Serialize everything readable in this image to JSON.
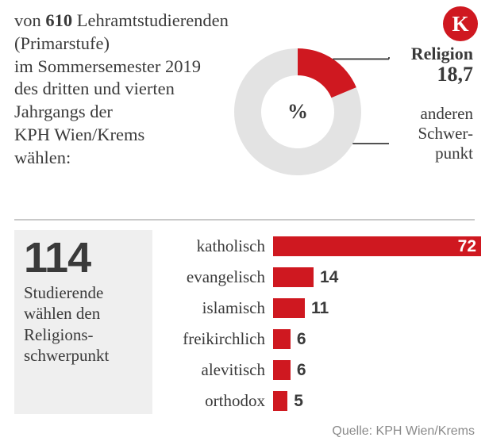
{
  "intro": {
    "pre": "von ",
    "count": "610",
    "rest_line1": " Lehramtstudierenden (Primarstufe)",
    "line2": "im Sommersemester 2019",
    "line3": "des dritten und vierten",
    "line4": "Jahrgangs der",
    "line5": "KPH Wien/Krems",
    "line6": "wählen:"
  },
  "logo_letter": "K",
  "donut": {
    "percent_label": "%",
    "religion": {
      "title": "Religion",
      "value_text": "18,7",
      "value_pct": 18.7,
      "color": "#cf1820"
    },
    "other": {
      "text_l1": "anderen",
      "text_l2": "Schwer-",
      "text_l3": "punkt",
      "value_pct": 81.3,
      "color": "#e3e3e3"
    },
    "leader_color": "#3a3a3a",
    "center_text_color": "#3a3a3a"
  },
  "summary": {
    "big": "114",
    "desc_l1": "Studierende",
    "desc_l2": "wählen den",
    "desc_l3": "Religions-",
    "desc_l4": "schwerpunkt",
    "bg": "#efefef"
  },
  "bars": {
    "max": 72,
    "bar_color": "#cf1820",
    "value_inside_color": "#ffffff",
    "value_outside_color": "#3a3a3a",
    "items": [
      {
        "label": "katholisch",
        "value": 72,
        "value_inside": true
      },
      {
        "label": "evangelisch",
        "value": 14,
        "value_inside": false
      },
      {
        "label": "islamisch",
        "value": 11,
        "value_inside": false
      },
      {
        "label": "freikirchlich",
        "value": 6,
        "value_inside": false
      },
      {
        "label": "alevitisch",
        "value": 6,
        "value_inside": false
      },
      {
        "label": "orthodox",
        "value": 5,
        "value_inside": false
      }
    ]
  },
  "source": "Quelle: KPH Wien/Krems"
}
